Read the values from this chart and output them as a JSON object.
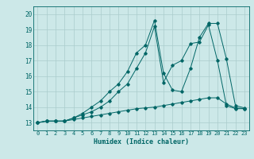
{
  "background_color": "#cce8e8",
  "grid_color": "#aacccc",
  "line_color": "#006666",
  "xlabel": "Humidex (Indice chaleur)",
  "xlim": [
    -0.5,
    23.5
  ],
  "ylim": [
    12.5,
    20.5
  ],
  "yticks": [
    13,
    14,
    15,
    16,
    17,
    18,
    19,
    20
  ],
  "xticks": [
    0,
    1,
    2,
    3,
    4,
    5,
    6,
    7,
    8,
    9,
    10,
    11,
    12,
    13,
    14,
    15,
    16,
    17,
    18,
    19,
    20,
    21,
    22,
    23
  ],
  "series1": {
    "x": [
      0,
      1,
      2,
      3,
      4,
      5,
      6,
      7,
      8,
      9,
      10,
      11,
      12,
      13,
      14,
      15,
      16,
      17,
      18,
      19,
      20,
      21,
      22,
      23
    ],
    "y": [
      13.0,
      13.1,
      13.1,
      13.1,
      13.2,
      13.3,
      13.4,
      13.5,
      13.6,
      13.7,
      13.8,
      13.9,
      13.95,
      14.0,
      14.1,
      14.2,
      14.3,
      14.4,
      14.5,
      14.6,
      14.6,
      14.2,
      13.95,
      13.9
    ]
  },
  "series2": {
    "x": [
      0,
      1,
      2,
      3,
      4,
      5,
      6,
      7,
      8,
      9,
      10,
      11,
      12,
      13,
      14,
      15,
      16,
      17,
      18,
      19,
      20,
      21,
      22,
      23
    ],
    "y": [
      13.0,
      13.1,
      13.1,
      13.1,
      13.3,
      13.5,
      13.7,
      14.0,
      14.4,
      15.0,
      15.5,
      16.5,
      17.5,
      19.2,
      15.6,
      16.7,
      17.0,
      18.1,
      18.2,
      19.3,
      17.0,
      14.1,
      13.9,
      13.9
    ]
  },
  "series3": {
    "x": [
      0,
      1,
      2,
      3,
      4,
      5,
      6,
      7,
      8,
      9,
      10,
      11,
      12,
      13,
      14,
      15,
      16,
      17,
      18,
      19,
      20,
      21,
      22,
      23
    ],
    "y": [
      13.0,
      13.1,
      13.1,
      13.1,
      13.3,
      13.6,
      14.0,
      14.4,
      15.0,
      15.5,
      16.3,
      17.5,
      18.0,
      19.6,
      16.2,
      15.1,
      15.0,
      16.5,
      18.5,
      19.4,
      19.4,
      17.1,
      14.1,
      13.95
    ]
  }
}
